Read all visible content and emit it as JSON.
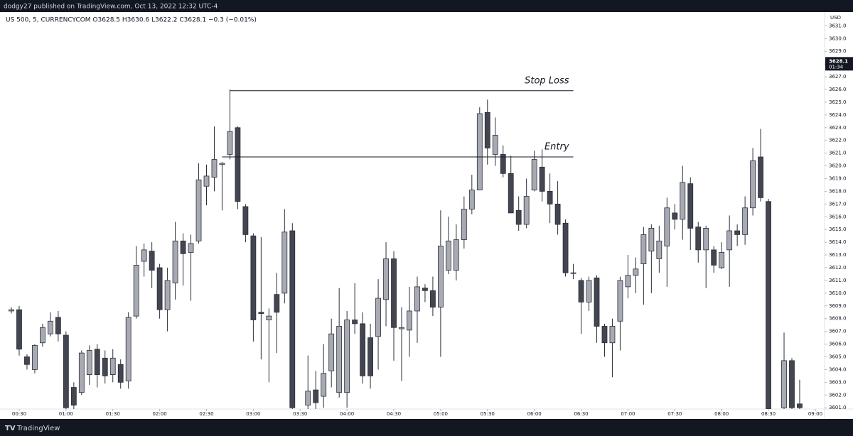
{
  "header": {
    "publisher": "dodgy27 published on TradingView.com, Oct 13, 2022 12:32 UTC-4",
    "footer_logo": "TradingView"
  },
  "chart_data": {
    "type": "candlestick",
    "legend_text": "US 500, 5, CURRENCYCOM  O3628.5  H3630.6  L3622.2  C3628.1  −0.3 (−0.01%)",
    "currency": "USD",
    "up_color": "#a7aab2",
    "down_color": "#434651",
    "outline_color": "#2a2e39",
    "categories": [
      null,
      "00:30",
      null,
      null,
      null,
      null,
      null,
      "01:00",
      null,
      null,
      null,
      null,
      null,
      "01:30",
      null,
      null,
      null,
      null,
      null,
      "02:00",
      null,
      null,
      null,
      null,
      null,
      "02:30",
      null,
      null,
      null,
      null,
      null,
      "03:00",
      null,
      null,
      null,
      null,
      null,
      "03:30",
      null,
      null,
      null,
      null,
      null,
      "04:00",
      null,
      null,
      null,
      null,
      null,
      "04:30",
      null,
      null,
      null,
      null,
      null,
      "05:00",
      null,
      null,
      null,
      null,
      null,
      "05:30",
      null,
      null,
      null,
      null,
      null,
      "06:00",
      null,
      null,
      null,
      null,
      null,
      "06:30",
      null,
      null,
      null,
      null,
      null,
      "07:00",
      null,
      null,
      null,
      null,
      null,
      "07:30",
      null,
      null,
      null,
      null,
      null,
      "08:00",
      null,
      null,
      null,
      null,
      null,
      "08:30",
      null,
      null,
      null,
      null,
      null,
      "09:00"
    ],
    "open": [
      3608.6,
      3608.7,
      3605.0,
      3604.0,
      3606.1,
      3606.8,
      3608.1,
      3606.7,
      3602.6,
      3602.2,
      3603.6,
      3605.6,
      3604.9,
      3603.6,
      3604.4,
      3603.1,
      3608.2,
      3612.5,
      3613.3,
      3612.0,
      3608.7,
      3610.8,
      3614.1,
      3613.2,
      3614.1,
      3618.4,
      3619.1,
      3620.1,
      3620.9,
      3623.0,
      3616.8,
      3614.5,
      3608.5,
      3607.9,
      3609.9,
      3610.0,
      3614.9,
      null,
      3601.2,
      3602.4,
      3601.9,
      3603.9,
      3602.2,
      3602.2,
      3607.9,
      3607.6,
      3606.5,
      3606.6,
      3609.5,
      3612.7,
      3607.2,
      3607.1,
      3608.6,
      3610.4,
      3610.2,
      3608.9,
      3611.8,
      3611.8,
      3614.2,
      3616.6,
      3618.1,
      3624.2,
      3620.9,
      3620.9,
      3619.4,
      3616.5,
      3615.4,
      3618.1,
      3619.9,
      3618.0,
      3617.0,
      3615.5,
      3611.6,
      3611.0,
      3609.3,
      3611.2,
      3607.4,
      3606.1,
      3607.8,
      3610.5,
      3611.4,
      3612.3,
      3613.3,
      3612.7,
      3613.7,
      3616.3,
      3615.8,
      3618.6,
      3615.2,
      3613.4,
      3613.4,
      3612.0,
      3613.4,
      3614.9,
      3614.6,
      3616.7,
      3620.7,
      3617.2,
      null,
      3601.0,
      3604.7,
      3601.3,
      null,
      null
    ],
    "high": [
      3608.9,
      3609.0,
      3605.2,
      3606.0,
      3607.6,
      3608.5,
      3608.6,
      3607.0,
      3603.0,
      3605.5,
      3605.9,
      3606.0,
      3605.5,
      3605.6,
      3604.8,
      3608.5,
      3613.7,
      3613.9,
      3614.0,
      3612.3,
      3612.0,
      3615.6,
      3614.7,
      3614.6,
      3620.2,
      3620.1,
      3623.1,
      3620.3,
      3626.0,
      3623.1,
      3617.0,
      3614.7,
      3614.4,
      3608.8,
      3611.6,
      3616.6,
      3615.5,
      null,
      3605.1,
      3603.9,
      3606.0,
      3608.0,
      3610.4,
      3608.6,
      3610.8,
      3608.5,
      3607.6,
      3611.1,
      3614.0,
      3613.3,
      3608.9,
      3610.5,
      3611.3,
      3610.7,
      3611.3,
      3616.5,
      3616.0,
      3615.4,
      3617.6,
      3619.3,
      3624.6,
      3625.2,
      3623.8,
      3621.6,
      3620.8,
      3617.6,
      3619.0,
      3621.2,
      3621.3,
      3619.4,
      3618.8,
      3615.8,
      3612.3,
      3611.2,
      3611.3,
      3611.4,
      3607.6,
      3608.0,
      3611.3,
      3613.0,
      3612.8,
      3615.2,
      3615.4,
      3615.3,
      3617.5,
      3617.0,
      3620.0,
      3619.1,
      3615.6,
      3615.3,
      3613.7,
      3614.0,
      3616.1,
      3615.4,
      3617.6,
      3621.4,
      3622.9,
      3617.4,
      null,
      3606.9,
      3604.9,
      3603.2,
      null,
      null
    ],
    "low": [
      3608.4,
      3605.1,
      3604.0,
      3603.7,
      3605.8,
      3606.6,
      3606.2,
      3600.5,
      3600.6,
      3602.0,
      3602.8,
      3602.6,
      3602.9,
      3603.0,
      3602.5,
      3602.5,
      3608.0,
      3611.3,
      3610.4,
      3608.0,
      3607.0,
      3609.5,
      3610.6,
      3609.4,
      3613.9,
      3616.9,
      3618.0,
      3616.5,
      3620.5,
      3616.6,
      3614.0,
      3606.2,
      3604.8,
      3603.0,
      3605.3,
      3609.2,
      3600.5,
      null,
      3600.7,
      3600.8,
      3601.0,
      3602.6,
      3601.8,
      3601.0,
      3606.8,
      3602.9,
      3602.5,
      3604.0,
      3607.4,
      3604.7,
      3603.1,
      3605.0,
      3606.1,
      3609.3,
      3608.2,
      3605.0,
      3611.5,
      3611.0,
      3613.5,
      3616.2,
      3618.1,
      3620.1,
      3620.0,
      3619.1,
      3616.3,
      3614.9,
      3615.1,
      3618.0,
      3617.2,
      3615.5,
      3614.6,
      3611.3,
      3611.1,
      3606.8,
      3608.6,
      3606.1,
      3605.0,
      3603.4,
      3605.5,
      3609.6,
      3610.0,
      3609.1,
      3610.0,
      3611.6,
      3610.5,
      3615.0,
      3614.2,
      3613.4,
      3612.4,
      3610.4,
      3611.6,
      3611.9,
      3610.5,
      3613.7,
      3613.8,
      3616.1,
      3617.2,
      3600.5,
      null,
      3600.6,
      3600.6,
      3600.7,
      null,
      null
    ],
    "close": [
      3608.7,
      3605.6,
      3604.4,
      3605.9,
      3607.3,
      3607.8,
      3606.8,
      3601.0,
      3601.2,
      3605.3,
      3605.5,
      3603.6,
      3603.5,
      3604.9,
      3603.0,
      3608.1,
      3612.2,
      3613.4,
      3611.8,
      3608.7,
      3611.0,
      3614.1,
      3613.1,
      3613.9,
      3618.9,
      3619.2,
      3620.5,
      3620.2,
      3622.7,
      3617.2,
      3614.6,
      3607.9,
      3608.4,
      3608.2,
      3608.5,
      3614.8,
      3601.0,
      null,
      3602.3,
      3601.4,
      3603.7,
      3606.8,
      3607.4,
      3607.9,
      3607.6,
      3603.5,
      3603.5,
      3609.6,
      3612.7,
      3607.3,
      3607.3,
      3608.6,
      3610.5,
      3610.2,
      3608.9,
      3613.7,
      3614.1,
      3614.2,
      3616.6,
      3618.1,
      3624.1,
      3621.4,
      3622.4,
      3619.4,
      3616.3,
      3615.4,
      3617.6,
      3620.5,
      3618.0,
      3617.0,
      3615.4,
      3611.6,
      3611.6,
      3609.3,
      3611.0,
      3607.4,
      3606.1,
      3607.4,
      3611.0,
      3611.4,
      3611.9,
      3614.6,
      3615.1,
      3614.1,
      3616.7,
      3615.8,
      3618.7,
      3615.1,
      3613.4,
      3615.1,
      3612.2,
      3613.2,
      3614.9,
      3614.6,
      3616.7,
      3620.4,
      3617.5,
      3600.9,
      null,
      3604.7,
      3601.0,
      3601.0,
      null,
      null
    ],
    "ylim": [
      3600.9,
      3631.8
    ],
    "yticks": [
      {
        "value": 3631,
        "label": "3631.0"
      },
      {
        "value": 3630,
        "label": "3630.0"
      },
      {
        "value": 3629,
        "label": "3629.0"
      },
      {
        "value": 3628,
        "label": "3628.0"
      },
      {
        "value": 3627,
        "label": "3627.0"
      },
      {
        "value": 3626,
        "label": "3626.0"
      },
      {
        "value": 3625,
        "label": "3625.0"
      },
      {
        "value": 3624,
        "label": "3624.0"
      },
      {
        "value": 3623,
        "label": "3623.0"
      },
      {
        "value": 3622,
        "label": "3622.0"
      },
      {
        "value": 3621,
        "label": "3621.0"
      },
      {
        "value": 3620,
        "label": "3620.0"
      },
      {
        "value": 3619,
        "label": "3619.0"
      },
      {
        "value": 3618,
        "label": "3618.0"
      },
      {
        "value": 3617,
        "label": "3617.0"
      },
      {
        "value": 3616,
        "label": "3616.0"
      },
      {
        "value": 3615,
        "label": "3615.0"
      },
      {
        "value": 3614,
        "label": "3614.0"
      },
      {
        "value": 3613,
        "label": "3613.0"
      },
      {
        "value": 3612,
        "label": "3612.0"
      },
      {
        "value": 3611,
        "label": "3611.0"
      },
      {
        "value": 3610,
        "label": "3610.0"
      },
      {
        "value": 3609,
        "label": "3609.0"
      },
      {
        "value": 3608,
        "label": "3608.0"
      },
      {
        "value": 3607,
        "label": "3607.0"
      },
      {
        "value": 3606,
        "label": "3606.0"
      },
      {
        "value": 3605,
        "label": "3605.0"
      },
      {
        "value": 3604,
        "label": "3604.0"
      },
      {
        "value": 3603,
        "label": "3603.0"
      },
      {
        "value": 3602,
        "label": "3602.0"
      },
      {
        "value": 3601,
        "label": "3601.0"
      }
    ],
    "last_price": 3628.1,
    "countdown": "01:34",
    "annotations": [
      {
        "text": "Stop Loss",
        "value": 3625.9,
        "x_from": 28,
        "x_to": 72,
        "color": "#131722"
      },
      {
        "text": "Entry",
        "value": 3620.7,
        "x_from": 27,
        "x_to": 72,
        "color": "#131722"
      }
    ]
  }
}
